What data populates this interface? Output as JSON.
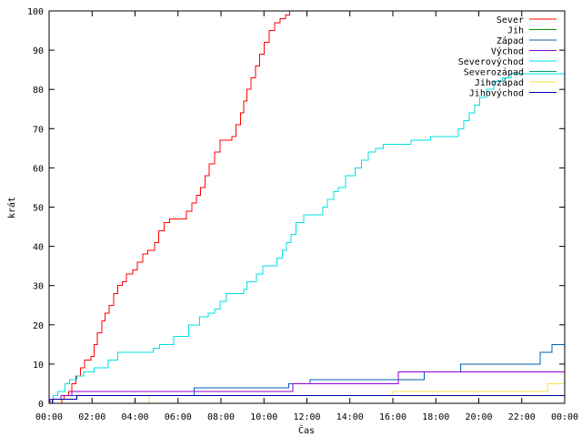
{
  "chart_data": {
    "type": "line",
    "title": "",
    "xlabel": "Čas",
    "ylabel": "krát",
    "xlim": [
      0,
      24
    ],
    "ylim": [
      0,
      100
    ],
    "x_ticks": [
      {
        "value": 0,
        "label": "00:00"
      },
      {
        "value": 2,
        "label": "02:00"
      },
      {
        "value": 4,
        "label": "04:00"
      },
      {
        "value": 6,
        "label": "06:00"
      },
      {
        "value": 8,
        "label": "08:00"
      },
      {
        "value": 10,
        "label": "10:00"
      },
      {
        "value": 12,
        "label": "12:00"
      },
      {
        "value": 14,
        "label": "14:00"
      },
      {
        "value": 16,
        "label": "16:00"
      },
      {
        "value": 18,
        "label": "18:00"
      },
      {
        "value": 20,
        "label": "20:00"
      },
      {
        "value": 22,
        "label": "22:00"
      },
      {
        "value": 24,
        "label": "00:00"
      }
    ],
    "y_ticks": [
      0,
      10,
      20,
      30,
      40,
      50,
      60,
      70,
      80,
      90,
      100
    ],
    "grid": false,
    "legend_position": "top-right",
    "series": [
      {
        "name": "Sever",
        "color": "#ff0000",
        "step": true,
        "points": [
          [
            0.55,
            0
          ],
          [
            0.6,
            1
          ],
          [
            0.7,
            2
          ],
          [
            0.9,
            3
          ],
          [
            1.05,
            5
          ],
          [
            1.25,
            7
          ],
          [
            1.45,
            9
          ],
          [
            1.65,
            11
          ],
          [
            1.95,
            12
          ],
          [
            2.1,
            15
          ],
          [
            2.25,
            18
          ],
          [
            2.45,
            21
          ],
          [
            2.6,
            23
          ],
          [
            2.8,
            25
          ],
          [
            3.0,
            28
          ],
          [
            3.2,
            30
          ],
          [
            3.4,
            31
          ],
          [
            3.6,
            33
          ],
          [
            3.9,
            34
          ],
          [
            4.1,
            36
          ],
          [
            4.35,
            38
          ],
          [
            4.6,
            39
          ],
          [
            4.9,
            41
          ],
          [
            5.1,
            44
          ],
          [
            5.35,
            46
          ],
          [
            5.6,
            47
          ],
          [
            6.1,
            47
          ],
          [
            6.4,
            49
          ],
          [
            6.65,
            51
          ],
          [
            6.85,
            53
          ],
          [
            7.05,
            55
          ],
          [
            7.25,
            58
          ],
          [
            7.45,
            61
          ],
          [
            7.7,
            64
          ],
          [
            7.95,
            67
          ],
          [
            8.3,
            67
          ],
          [
            8.5,
            68
          ],
          [
            8.7,
            71
          ],
          [
            8.9,
            74
          ],
          [
            9.05,
            77
          ],
          [
            9.2,
            80
          ],
          [
            9.4,
            83
          ],
          [
            9.6,
            86
          ],
          [
            9.8,
            89
          ],
          [
            10.0,
            92
          ],
          [
            10.25,
            95
          ],
          [
            10.5,
            97
          ],
          [
            10.75,
            98
          ],
          [
            11.0,
            99
          ],
          [
            11.2,
            100
          ]
        ]
      },
      {
        "name": "Jih",
        "color": "#00a000",
        "step": true,
        "points": []
      },
      {
        "name": "Západ",
        "color": "#0060ad",
        "step": true,
        "points": [
          [
            0,
            0
          ],
          [
            0.15,
            1
          ],
          [
            0.55,
            2
          ],
          [
            6.65,
            2
          ],
          [
            6.75,
            4
          ],
          [
            11.05,
            4
          ],
          [
            11.15,
            5
          ],
          [
            11.85,
            5
          ],
          [
            12.15,
            6
          ],
          [
            17.35,
            6
          ],
          [
            17.45,
            8
          ],
          [
            19.05,
            8
          ],
          [
            19.15,
            10
          ],
          [
            22.75,
            10
          ],
          [
            22.85,
            13
          ],
          [
            23.3,
            13
          ],
          [
            23.4,
            15
          ],
          [
            24,
            15
          ]
        ]
      },
      {
        "name": "Východ",
        "color": "#9400d3",
        "step": true,
        "points": [
          [
            0,
            0
          ],
          [
            0.05,
            1
          ],
          [
            0.55,
            2
          ],
          [
            1.05,
            3
          ],
          [
            11.25,
            3
          ],
          [
            11.35,
            5
          ],
          [
            16.15,
            5
          ],
          [
            16.25,
            8
          ],
          [
            24,
            8
          ]
        ]
      },
      {
        "name": "Severovýchod",
        "color": "#00e0e0",
        "step": true,
        "points": [
          [
            0,
            0
          ],
          [
            0.2,
            2
          ],
          [
            0.4,
            3
          ],
          [
            0.75,
            5
          ],
          [
            0.95,
            6
          ],
          [
            1.3,
            7
          ],
          [
            1.6,
            8
          ],
          [
            2.1,
            9
          ],
          [
            2.75,
            11
          ],
          [
            3.2,
            13
          ],
          [
            4.85,
            14
          ],
          [
            5.15,
            15
          ],
          [
            5.8,
            17
          ],
          [
            6.5,
            20
          ],
          [
            7.0,
            22
          ],
          [
            7.4,
            23
          ],
          [
            7.7,
            24
          ],
          [
            7.95,
            26
          ],
          [
            8.25,
            28
          ],
          [
            9.05,
            29
          ],
          [
            9.2,
            31
          ],
          [
            9.65,
            33
          ],
          [
            9.95,
            35
          ],
          [
            10.6,
            37
          ],
          [
            10.85,
            39
          ],
          [
            11.05,
            41
          ],
          [
            11.25,
            43
          ],
          [
            11.5,
            46
          ],
          [
            11.85,
            48
          ],
          [
            12.75,
            50
          ],
          [
            12.95,
            52
          ],
          [
            13.25,
            54
          ],
          [
            13.45,
            55
          ],
          [
            13.8,
            58
          ],
          [
            14.25,
            60
          ],
          [
            14.55,
            62
          ],
          [
            14.85,
            64
          ],
          [
            15.2,
            65
          ],
          [
            15.55,
            66
          ],
          [
            16.85,
            67
          ],
          [
            17.75,
            68
          ],
          [
            18.85,
            68
          ],
          [
            19.05,
            70
          ],
          [
            19.3,
            72
          ],
          [
            19.55,
            74
          ],
          [
            19.8,
            76
          ],
          [
            20.05,
            78
          ],
          [
            20.35,
            80
          ],
          [
            20.7,
            82
          ],
          [
            21.1,
            83
          ],
          [
            21.5,
            84
          ],
          [
            24,
            84
          ]
        ]
      },
      {
        "name": "Severozápad",
        "color": "#009e73",
        "step": true,
        "points": []
      },
      {
        "name": "Jihozápad",
        "color": "#f0e442",
        "step": true,
        "points": [
          [
            0,
            0
          ],
          [
            4.55,
            0
          ],
          [
            4.65,
            2
          ],
          [
            10.35,
            2
          ],
          [
            10.45,
            2
          ],
          [
            15.9,
            2
          ],
          [
            16.0,
            3
          ],
          [
            23.1,
            3
          ],
          [
            23.2,
            5
          ],
          [
            24,
            5
          ]
        ]
      },
      {
        "name": "Jihovýchod",
        "color": "#0000a0",
        "step": true,
        "points": [
          [
            0,
            0
          ],
          [
            0.15,
            1
          ],
          [
            0.65,
            1
          ],
          [
            0.75,
            1
          ],
          [
            1.2,
            1
          ],
          [
            1.3,
            2
          ],
          [
            4.55,
            2
          ],
          [
            4.65,
            2
          ],
          [
            24,
            2
          ]
        ]
      }
    ]
  }
}
